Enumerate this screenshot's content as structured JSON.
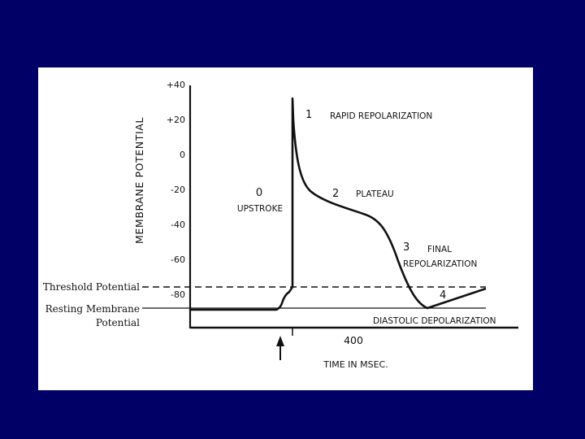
{
  "chart_data": {
    "type": "line",
    "ylabel": "MEMBRANE POTENTIAL",
    "xlabel": "TIME IN MSEC.",
    "y_ticks": [
      "+40",
      "+20",
      "0",
      "-20",
      "-40",
      "-60",
      "-80"
    ],
    "x_tick": "400",
    "phases": [
      {
        "number": "0",
        "name": "UPSTROKE"
      },
      {
        "number": "1",
        "name": "RAPID REPOLARIZATION"
      },
      {
        "number": "2",
        "name": "PLATEAU"
      },
      {
        "number": "3",
        "name": "FINAL",
        "name_line2": "REPOLARIZATION"
      },
      {
        "number": "4",
        "name": "DIASTOLIC DEPOLARIZATION"
      }
    ],
    "reference_lines": {
      "threshold": "Threshold Potential",
      "resting_line1": "Resting Membrane",
      "resting_line2": "Potential"
    }
  },
  "colors": {
    "background": "#000066",
    "panel": "#ffffff",
    "ink": "#111111"
  }
}
